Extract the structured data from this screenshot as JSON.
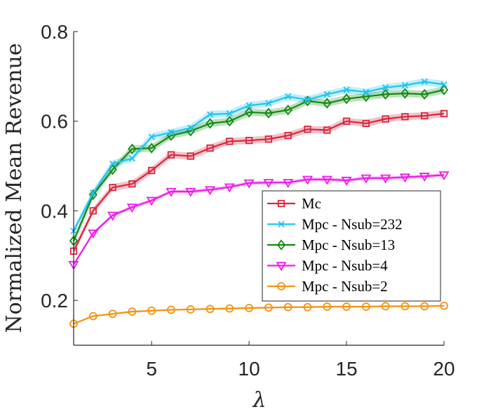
{
  "chart_data": {
    "type": "line",
    "title": "",
    "xlabel": "λ",
    "ylabel": "Normalized Mean Revenue",
    "xlim": [
      1,
      20
    ],
    "ylim": [
      0.1,
      0.8
    ],
    "xticks": [
      5,
      10,
      15,
      20
    ],
    "yticks": [
      0.2,
      0.4,
      0.6,
      0.8
    ],
    "grid": false,
    "legend_position": "bottom-right",
    "x": [
      1,
      2,
      3,
      4,
      5,
      6,
      7,
      8,
      9,
      10,
      11,
      12,
      13,
      14,
      15,
      16,
      17,
      18,
      19,
      20
    ],
    "series": [
      {
        "name": "Mc",
        "color": "#d7263d",
        "marker": "square",
        "values": [
          0.31,
          0.4,
          0.452,
          0.46,
          0.49,
          0.525,
          0.522,
          0.54,
          0.555,
          0.557,
          0.56,
          0.568,
          0.582,
          0.58,
          0.6,
          0.595,
          0.605,
          0.61,
          0.612,
          0.617
        ],
        "band": 0.008
      },
      {
        "name": "Mpc - Nsub=232",
        "color": "#1ec4f0",
        "marker": "x",
        "values": [
          0.355,
          0.44,
          0.505,
          0.517,
          0.565,
          0.575,
          0.585,
          0.615,
          0.617,
          0.635,
          0.64,
          0.655,
          0.648,
          0.66,
          0.67,
          0.665,
          0.675,
          0.68,
          0.688,
          0.682
        ],
        "band": 0.008
      },
      {
        "name": "Mpc - Nsub=13",
        "color": "#128a12",
        "marker": "diamond",
        "values": [
          0.333,
          0.436,
          0.492,
          0.538,
          0.54,
          0.568,
          0.578,
          0.595,
          0.6,
          0.62,
          0.618,
          0.625,
          0.645,
          0.64,
          0.65,
          0.655,
          0.66,
          0.662,
          0.66,
          0.67
        ],
        "band": 0.008
      },
      {
        "name": "Mpc - Nsub=4",
        "color": "#ee1be8",
        "marker": "triangle-down",
        "values": [
          0.28,
          0.35,
          0.39,
          0.408,
          0.423,
          0.443,
          0.443,
          0.447,
          0.453,
          0.462,
          0.463,
          0.463,
          0.47,
          0.47,
          0.468,
          0.473,
          0.473,
          0.475,
          0.477,
          0.48
        ],
        "band": 0.004
      },
      {
        "name": "Mpc - Nsub=2",
        "color": "#f4920f",
        "marker": "circle",
        "values": [
          0.148,
          0.165,
          0.17,
          0.175,
          0.177,
          0.179,
          0.18,
          0.181,
          0.182,
          0.183,
          0.184,
          0.185,
          0.185,
          0.186,
          0.186,
          0.186,
          0.187,
          0.187,
          0.187,
          0.188
        ],
        "band": 0.002
      }
    ]
  }
}
